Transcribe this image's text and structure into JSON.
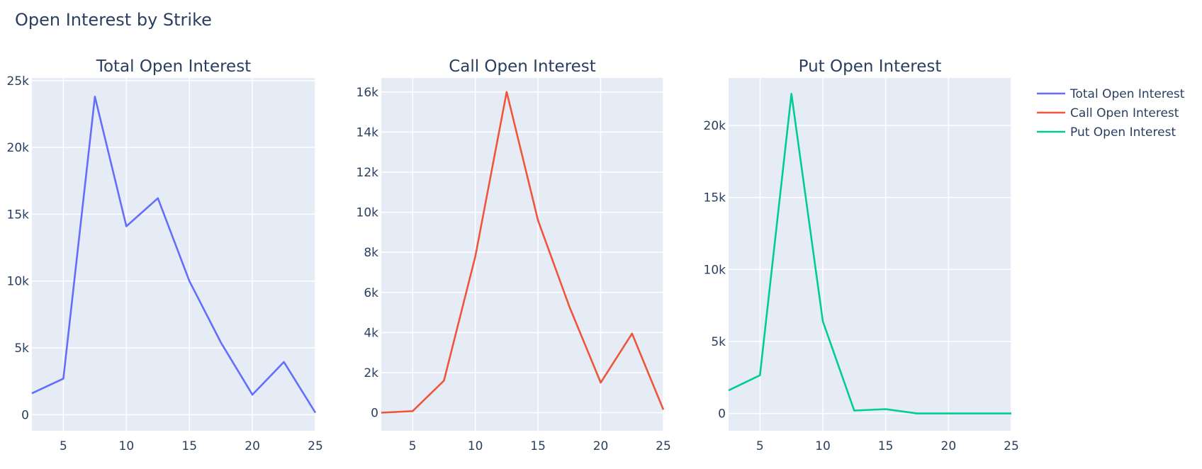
{
  "title": "Open Interest by Strike",
  "colors": {
    "plot_bg": "#E5ECF6",
    "grid": "#ffffff",
    "text": "#2a3f5f"
  },
  "chart_data": [
    {
      "type": "line",
      "title": "Total Open Interest",
      "series": [
        {
          "name": "Total Open Interest",
          "color": "#636EFA",
          "x": [
            2.5,
            5,
            7.5,
            10,
            12.5,
            15,
            17.5,
            20,
            22.5,
            25
          ],
          "y": [
            1600,
            2700,
            23800,
            14100,
            16200,
            10000,
            5400,
            1500,
            3950,
            150
          ]
        }
      ],
      "xlim": [
        2.5,
        25
      ],
      "ylim": [
        -1200,
        25200
      ],
      "x_ticks": [
        5,
        10,
        15,
        20,
        25
      ],
      "x_tick_labels": [
        "5",
        "10",
        "15",
        "20",
        "25"
      ],
      "y_ticks": [
        0,
        5000,
        10000,
        15000,
        20000,
        25000
      ],
      "y_tick_labels": [
        "0",
        "5k",
        "10k",
        "15k",
        "20k",
        "25k"
      ],
      "grid": true
    },
    {
      "type": "line",
      "title": "Call Open Interest",
      "series": [
        {
          "name": "Call Open Interest",
          "color": "#EF553B",
          "x": [
            2.5,
            5,
            7.5,
            10,
            12.5,
            15,
            17.5,
            20,
            22.5,
            25
          ],
          "y": [
            0,
            80,
            1600,
            7800,
            16000,
            9600,
            5300,
            1500,
            3950,
            150
          ]
        }
      ],
      "xlim": [
        2.5,
        25
      ],
      "ylim": [
        -900,
        16700
      ],
      "x_ticks": [
        5,
        10,
        15,
        20,
        25
      ],
      "x_tick_labels": [
        "5",
        "10",
        "15",
        "20",
        "25"
      ],
      "y_ticks": [
        0,
        2000,
        4000,
        6000,
        8000,
        10000,
        12000,
        14000,
        16000
      ],
      "y_tick_labels": [
        "0",
        "2k",
        "4k",
        "6k",
        "8k",
        "10k",
        "12k",
        "14k",
        "16k"
      ],
      "grid": true
    },
    {
      "type": "line",
      "title": "Put Open Interest",
      "series": [
        {
          "name": "Put Open Interest",
          "color": "#00CC96",
          "x": [
            2.5,
            5,
            7.5,
            10,
            12.5,
            15,
            17.5,
            20,
            22.5,
            25
          ],
          "y": [
            1600,
            2650,
            22200,
            6400,
            200,
            300,
            0,
            0,
            0,
            0
          ]
        }
      ],
      "xlim": [
        2.5,
        25
      ],
      "ylim": [
        -1200,
        23300
      ],
      "x_ticks": [
        5,
        10,
        15,
        20,
        25
      ],
      "x_tick_labels": [
        "5",
        "10",
        "15",
        "20",
        "25"
      ],
      "y_ticks": [
        0,
        5000,
        10000,
        15000,
        20000
      ],
      "y_tick_labels": [
        "0",
        "5k",
        "10k",
        "15k",
        "20k"
      ],
      "grid": true
    }
  ],
  "legend": {
    "placement": "top-right",
    "items": [
      {
        "label": "Total Open Interest",
        "color": "#636EFA"
      },
      {
        "label": "Call Open Interest",
        "color": "#EF553B"
      },
      {
        "label": "Put Open Interest",
        "color": "#00CC96"
      }
    ]
  }
}
